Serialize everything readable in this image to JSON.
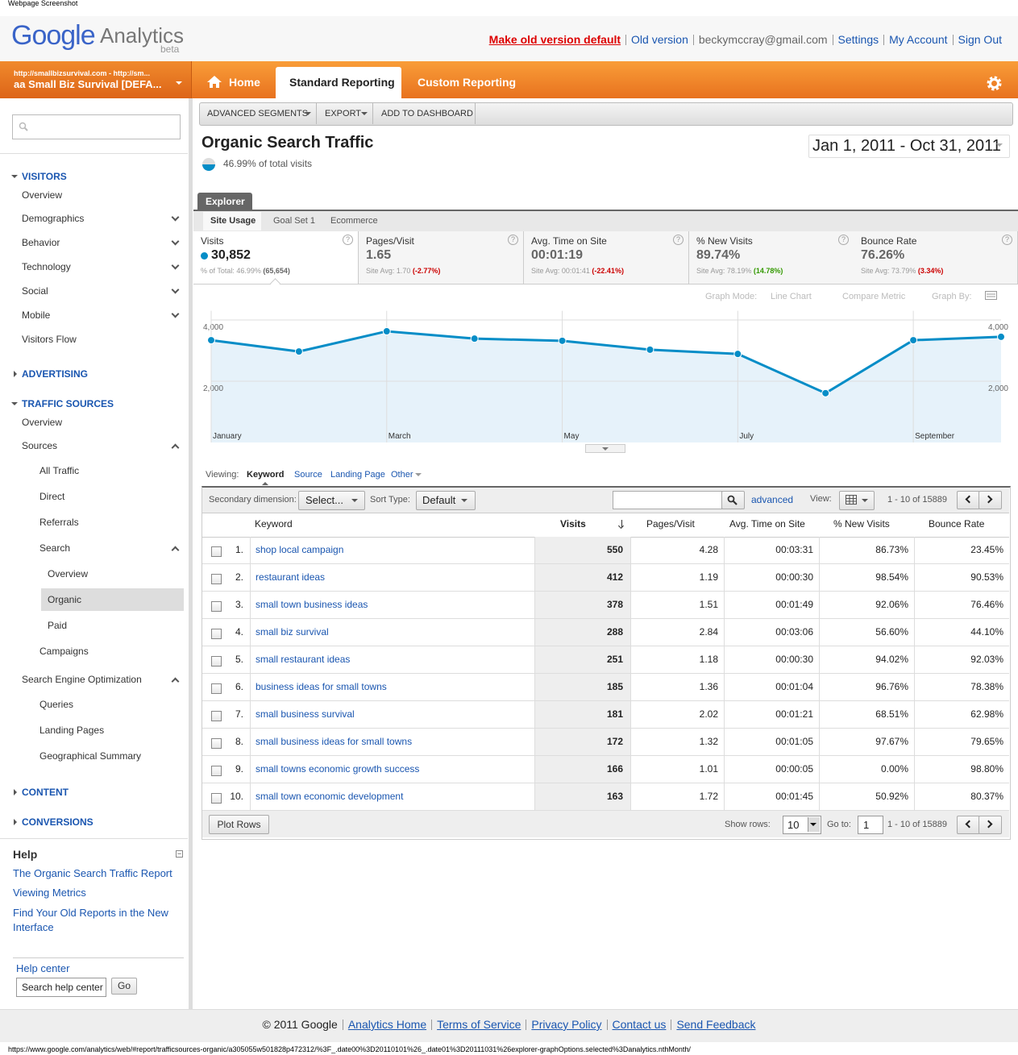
{
  "top_label": "Webpage Screenshot",
  "header": {
    "logo_google": "Google",
    "logo_analytics": "Analytics",
    "logo_beta": "beta",
    "links": [
      "Make old version default",
      "Old version",
      "beckymccray@gmail.com",
      "Settings",
      "My Account",
      "Sign Out"
    ]
  },
  "nav": {
    "account_url": "http://smallbizsurvival.com - http://sm...",
    "account_name": "aa Small Biz Survival [DEFA...",
    "tabs": [
      "Home",
      "Standard Reporting",
      "Custom Reporting"
    ]
  },
  "sidebar": {
    "visitors": {
      "title": "VISITORS",
      "items": [
        "Overview",
        "Demographics",
        "Behavior",
        "Technology",
        "Social",
        "Mobile",
        "Visitors Flow"
      ]
    },
    "advertising": "ADVERTISING",
    "traffic_sources": {
      "title": "TRAFFIC SOURCES",
      "items": [
        "Overview",
        "Sources",
        "All Traffic",
        "Direct",
        "Referrals",
        "Search",
        "Overview",
        "Organic",
        "Paid",
        "Campaigns",
        "Search Engine Optimization",
        "Queries",
        "Landing Pages",
        "Geographical Summary"
      ]
    },
    "content": "CONTENT",
    "conversions": "CONVERSIONS"
  },
  "help": {
    "title": "Help",
    "links": [
      "The Organic Search Traffic Report",
      "Viewing Metrics",
      "Find Your Old Reports in the New Interface"
    ],
    "help_center": "Help center",
    "search_value": "Search help center",
    "go": "Go"
  },
  "toolbar": [
    "ADVANCED SEGMENTS",
    "EXPORT",
    "ADD TO DASHBOARD"
  ],
  "report": {
    "title": "Organic Search Traffic",
    "subtitle": "46.99% of total visits",
    "date_range": "Jan 1, 2011 - Oct 31, 2011"
  },
  "explorer": {
    "tab": "Explorer",
    "subtabs": [
      "Site Usage",
      "Goal Set 1",
      "Ecommerce"
    ],
    "metrics": [
      {
        "name": "Visits",
        "value": "30,852",
        "sub": "% of Total: 46.99%",
        "change": "(65,654)",
        "change_color": "#666"
      },
      {
        "name": "Pages/Visit",
        "value": "1.65",
        "sub": "Site Avg: 1.70",
        "change": "(-2.77%)",
        "change_color": "#c00"
      },
      {
        "name": "Avg. Time on Site",
        "value": "00:01:19",
        "sub": "Site Avg: 00:01:41",
        "change": "(-22.41%)",
        "change_color": "#c00"
      },
      {
        "name": "% New Visits",
        "value": "89.74%",
        "sub": "Site Avg: 78.19%",
        "change": "(14.78%)",
        "change_color": "#390"
      },
      {
        "name": "Bounce Rate",
        "value": "76.26%",
        "sub": "Site Avg: 73.79%",
        "change": "(3.34%)",
        "change_color": "#c00"
      }
    ],
    "graph_controls": [
      "Graph Mode:",
      "Line Chart",
      "Compare Metric",
      "Graph By:"
    ]
  },
  "chart_data": {
    "type": "line",
    "categories": [
      "January",
      null,
      "March",
      null,
      "May",
      null,
      "July",
      null,
      "September",
      null
    ],
    "values": [
      3340,
      2970,
      3630,
      3390,
      3320,
      3030,
      2890,
      1610,
      3340,
      3450
    ],
    "color": "#058dc7",
    "ylim": [
      0,
      4300
    ],
    "yticks": [
      {
        "value": 2000,
        "label": "2,000"
      },
      {
        "value": 4000,
        "label": "4,000"
      }
    ],
    "grid": true
  },
  "table": {
    "viewing_label": "Viewing:",
    "views": [
      "Keyword",
      "Source",
      "Landing Page",
      "Other"
    ],
    "secondary_label": "Secondary dimension:",
    "secondary_value": "Select...",
    "sort_label": "Sort Type:",
    "sort_value": "Default",
    "advanced": "advanced",
    "view_label": "View:",
    "pagination": "1 - 10 of 15889",
    "headers": [
      "Keyword",
      "Visits",
      "Pages/Visit",
      "Avg. Time on Site",
      "% New Visits",
      "Bounce Rate"
    ],
    "rows": [
      [
        "1.",
        "shop local campaign",
        "550",
        "4.28",
        "00:03:31",
        "86.73%",
        "23.45%"
      ],
      [
        "2.",
        "restaurant ideas",
        "412",
        "1.19",
        "00:00:30",
        "98.54%",
        "90.53%"
      ],
      [
        "3.",
        "small town business ideas",
        "378",
        "1.51",
        "00:01:49",
        "92.06%",
        "76.46%"
      ],
      [
        "4.",
        "small biz survival",
        "288",
        "2.84",
        "00:03:06",
        "56.60%",
        "44.10%"
      ],
      [
        "5.",
        "small restaurant ideas",
        "251",
        "1.18",
        "00:00:30",
        "94.02%",
        "92.03%"
      ],
      [
        "6.",
        "business ideas for small towns",
        "185",
        "1.36",
        "00:01:04",
        "96.76%",
        "78.38%"
      ],
      [
        "7.",
        "small business survival",
        "181",
        "2.02",
        "00:01:21",
        "68.51%",
        "62.98%"
      ],
      [
        "8.",
        "small business ideas for small towns",
        "172",
        "1.32",
        "00:01:05",
        "97.67%",
        "79.65%"
      ],
      [
        "9.",
        "small towns economic growth success",
        "166",
        "1.01",
        "00:00:05",
        "0.00%",
        "98.80%"
      ],
      [
        "10.",
        "small town economic development",
        "163",
        "1.72",
        "00:01:45",
        "50.92%",
        "80.37%"
      ]
    ],
    "plot_rows": "Plot Rows",
    "show_rows_label": "Show rows:",
    "show_rows_value": "10",
    "goto_label": "Go to:",
    "goto_value": "1"
  },
  "footer": {
    "copyright": "© 2011 Google",
    "links": [
      "Analytics Home",
      "Terms of Service",
      "Privacy Policy",
      "Contact us",
      "Send Feedback"
    ]
  },
  "status_url": "https://www.google.com/analytics/web/#report/trafficsources-organic/a305055w501828p472312/%3F_.date00%3D20110101%26_.date01%3D20111031%26explorer-graphOptions.selected%3Danalytics.nthMonth/"
}
